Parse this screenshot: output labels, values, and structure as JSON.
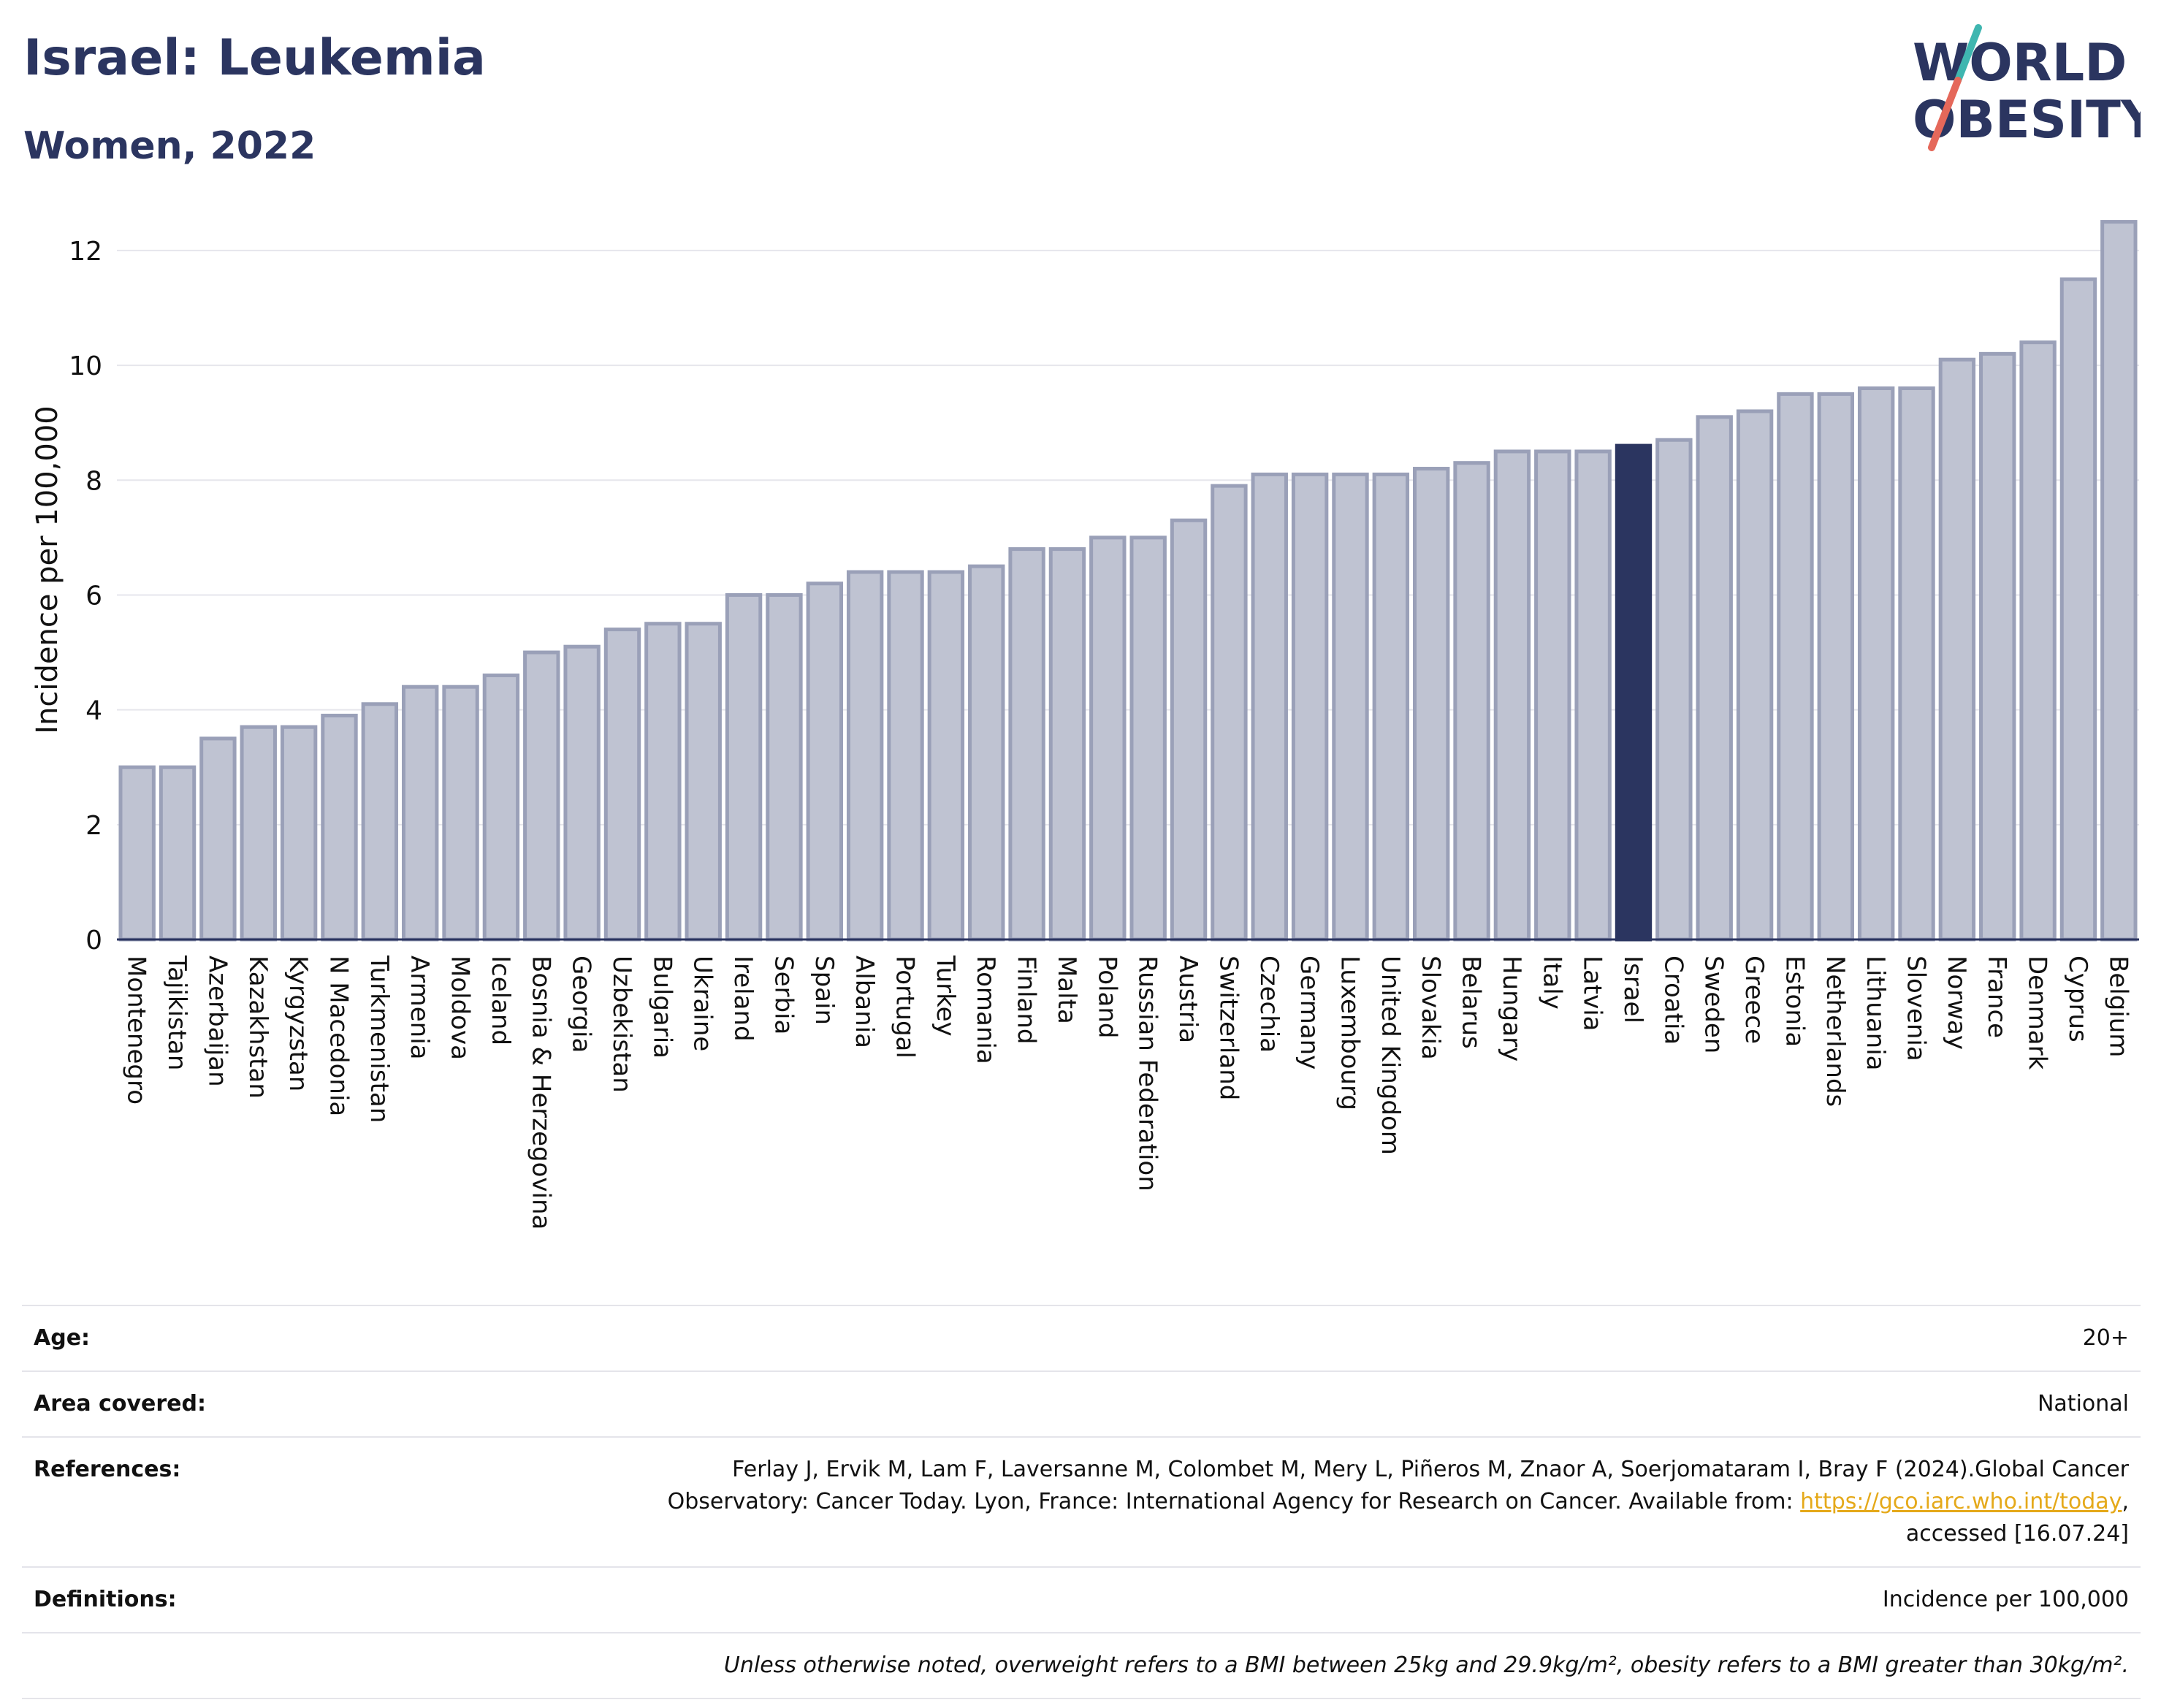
{
  "header": {
    "title": "Israel: Leukemia",
    "subtitle": "Women, 2022"
  },
  "logo": {
    "line1": "WORLD",
    "line2": "OBESITY",
    "navy": "#2b3560",
    "slash_top": "#3fb6b0",
    "slash_bottom": "#e5685a"
  },
  "chart_data": {
    "type": "bar",
    "ylabel": "Incidence per 100,000",
    "ylim": [
      0,
      12.8
    ],
    "yticks": [
      0,
      2,
      4,
      6,
      8,
      10,
      12
    ],
    "grid": true,
    "highlight": "Israel",
    "bar_color": "#bfc3d2",
    "bar_border": "#9aa0b8",
    "highlight_color": "#2b3560",
    "categories": [
      "Montenegro",
      "Tajikistan",
      "Azerbaijan",
      "Kazakhstan",
      "Kyrgyzstan",
      "N Macedonia",
      "Turkmenistan",
      "Armenia",
      "Moldova",
      "Iceland",
      "Bosnia & Herzegovina",
      "Georgia",
      "Uzbekistan",
      "Bulgaria",
      "Ukraine",
      "Ireland",
      "Serbia",
      "Spain",
      "Albania",
      "Portugal",
      "Turkey",
      "Romania",
      "Finland",
      "Malta",
      "Poland",
      "Russian Federation",
      "Austria",
      "Switzerland",
      "Czechia",
      "Germany",
      "Luxembourg",
      "United Kingdom",
      "Slovakia",
      "Belarus",
      "Hungary",
      "Italy",
      "Latvia",
      "Israel",
      "Croatia",
      "Sweden",
      "Greece",
      "Estonia",
      "Netherlands",
      "Lithuania",
      "Slovenia",
      "Norway",
      "France",
      "Denmark",
      "Cyprus",
      "Belgium"
    ],
    "values": [
      3.0,
      3.0,
      3.5,
      3.7,
      3.7,
      3.9,
      4.1,
      4.4,
      4.4,
      4.6,
      5.0,
      5.1,
      5.4,
      5.5,
      5.5,
      6.0,
      6.0,
      6.2,
      6.4,
      6.4,
      6.4,
      6.5,
      6.8,
      6.8,
      7.0,
      7.0,
      7.3,
      7.9,
      8.1,
      8.1,
      8.1,
      8.1,
      8.2,
      8.3,
      8.5,
      8.5,
      8.5,
      8.6,
      8.7,
      9.1,
      9.2,
      9.5,
      9.5,
      9.6,
      9.6,
      10.1,
      10.2,
      10.4,
      11.5,
      12.5
    ]
  },
  "info": {
    "age_label": "Age:",
    "age_value": "20+",
    "area_label": "Area covered:",
    "area_value": "National",
    "references_label": "References:",
    "references_line1": "Ferlay J, Ervik M, Lam F, Laversanne M, Colombet M, Mery L, Piñeros M, Znaor A, Soerjomataram I, Bray F (2024).Global Cancer",
    "references_line2": "Observatory: Cancer Today. Lyon, France: International Agency for Research on Cancer. Available from:",
    "references_link": "https://gco.iarc.who.int/today",
    "references_line3": "accessed [16.07.24]",
    "definitions_label": "Definitions:",
    "definitions_value": "Incidence per 100,000",
    "note": "Unless otherwise noted, overweight refers to a BMI between 25kg and 29.9kg/m², obesity refers to a BMI greater than 30kg/m²."
  }
}
